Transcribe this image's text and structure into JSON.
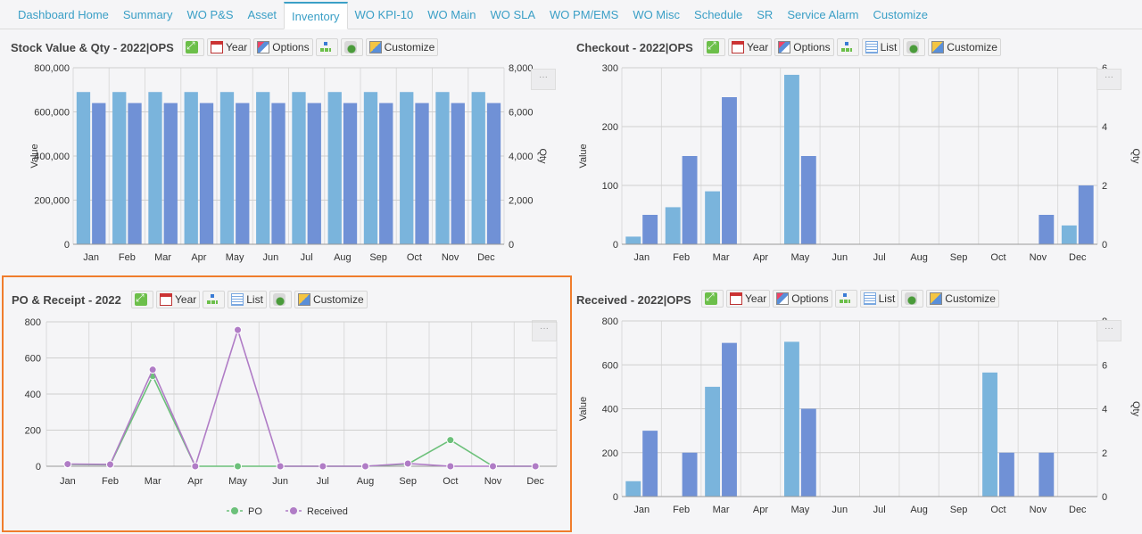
{
  "tabs": [
    "Dashboard Home",
    "Summary",
    "WO P&S",
    "Asset",
    "Inventory",
    "WO KPI-10",
    "WO Main",
    "WO SLA",
    "WO PM/EMS",
    "WO Misc",
    "Schedule",
    "SR",
    "Service Alarm",
    "Customize"
  ],
  "active_tab": "Inventory",
  "toolbar_labels": {
    "year": "Year",
    "options": "Options",
    "list": "List",
    "customize": "Customize",
    "more": "···"
  },
  "panels": {
    "stock": {
      "title": "Stock Value & Qty - 2022|OPS"
    },
    "checkout": {
      "title": "Checkout - 2022|OPS"
    },
    "po": {
      "title": "PO & Receipt - 2022"
    },
    "received": {
      "title": "Received - 2022|OPS"
    }
  },
  "colors": {
    "value_bar": "#7ab4dc",
    "qty_bar": "#7091d6",
    "po_line": "#6cc07a",
    "received_line": "#b07cc6",
    "tab_text": "#3a9fc6",
    "selected_border": "#f07d2c"
  },
  "chart_data": [
    {
      "id": "stock",
      "type": "bar",
      "categories": [
        "Jan",
        "Feb",
        "Mar",
        "Apr",
        "May",
        "Jun",
        "Jul",
        "Aug",
        "Sep",
        "Oct",
        "Nov",
        "Dec"
      ],
      "ylabel": "Value",
      "y2label": "Qty",
      "ylim": [
        0,
        800000
      ],
      "y2lim": [
        0,
        8000
      ],
      "yticks": [
        "0",
        "200,000",
        "400,000",
        "600,000",
        "800,000"
      ],
      "y2ticks": [
        "0",
        "2,000",
        "4,000",
        "6,000",
        "8,000"
      ],
      "series": [
        {
          "values": [
            690000,
            690000,
            690000,
            690000,
            690000,
            690000,
            690000,
            690000,
            690000,
            690000,
            690000,
            690000
          ],
          "axis": "left"
        },
        {
          "values": [
            6400,
            6400,
            6400,
            6400,
            6400,
            6400,
            6400,
            6400,
            6400,
            6400,
            6400,
            6400
          ],
          "axis": "right"
        }
      ]
    },
    {
      "id": "checkout",
      "type": "bar",
      "categories": [
        "Jan",
        "Feb",
        "Mar",
        "Apr",
        "May",
        "Jun",
        "Jul",
        "Aug",
        "Sep",
        "Oct",
        "Nov",
        "Dec"
      ],
      "ylabel": "Value",
      "y2label": "Qty",
      "ylim": [
        0,
        300
      ],
      "y2lim": [
        0,
        6
      ],
      "yticks": [
        "0",
        "100",
        "200",
        "300"
      ],
      "y2ticks": [
        "0",
        "2",
        "4",
        "6"
      ],
      "series": [
        {
          "values": [
            13,
            63,
            90,
            0,
            288,
            0,
            0,
            0,
            0,
            0,
            0,
            32
          ],
          "axis": "left"
        },
        {
          "values": [
            1,
            3,
            5,
            0,
            3,
            0,
            0,
            0,
            0,
            0,
            1,
            2
          ],
          "axis": "right"
        }
      ]
    },
    {
      "id": "po",
      "type": "line",
      "categories": [
        "Jan",
        "Feb",
        "Mar",
        "Apr",
        "May",
        "Jun",
        "Jul",
        "Aug",
        "Sep",
        "Oct",
        "Nov",
        "Dec"
      ],
      "ylim": [
        0,
        800
      ],
      "yticks": [
        "0",
        "200",
        "400",
        "600",
        "800"
      ],
      "legend": "bottom",
      "series": [
        {
          "name": "PO",
          "values": [
            10,
            8,
            500,
            0,
            0,
            0,
            0,
            0,
            12,
            145,
            0,
            0
          ]
        },
        {
          "name": "Received",
          "values": [
            12,
            10,
            535,
            0,
            755,
            0,
            0,
            0,
            15,
            0,
            0,
            0
          ]
        }
      ]
    },
    {
      "id": "received",
      "type": "bar",
      "categories": [
        "Jan",
        "Feb",
        "Mar",
        "Apr",
        "May",
        "Jun",
        "Jul",
        "Aug",
        "Sep",
        "Oct",
        "Nov",
        "Dec"
      ],
      "ylabel": "Value",
      "y2label": "Qty",
      "ylim": [
        0,
        800
      ],
      "y2lim": [
        0,
        8
      ],
      "yticks": [
        "0",
        "200",
        "400",
        "600",
        "800"
      ],
      "y2ticks": [
        "0",
        "2",
        "4",
        "6",
        "8"
      ],
      "series": [
        {
          "values": [
            70,
            0,
            500,
            0,
            705,
            0,
            0,
            0,
            0,
            565,
            0,
            0
          ],
          "axis": "left"
        },
        {
          "values": [
            3,
            2,
            7,
            0,
            4,
            0,
            0,
            0,
            0,
            2,
            2,
            0
          ],
          "axis": "right"
        }
      ]
    }
  ]
}
